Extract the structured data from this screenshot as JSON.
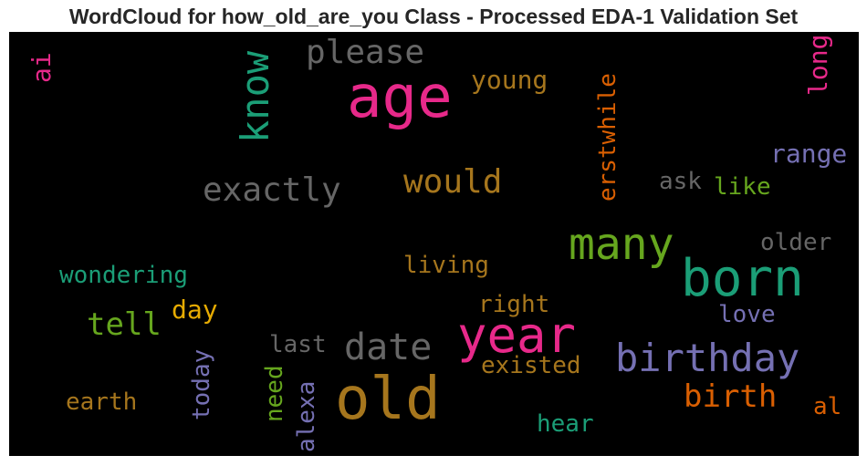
{
  "title": "WordCloud for how_old_are_you Class - Processed EDA-1 Validation Set",
  "colors": {
    "background": "#000000",
    "pink": "#e7298a",
    "teal": "#1b9e77",
    "orange": "#d95f02",
    "purple": "#7570b3",
    "green": "#66a61e",
    "gold": "#a6761d",
    "yellow": "#e6ab02",
    "gray": "#666666"
  },
  "words": [
    {
      "text": "age",
      "color": "#e7298a"
    },
    {
      "text": "old",
      "color": "#a6761d"
    },
    {
      "text": "year",
      "color": "#e7298a"
    },
    {
      "text": "born",
      "color": "#1b9e77"
    },
    {
      "text": "many",
      "color": "#66a61e"
    },
    {
      "text": "birthday",
      "color": "#7570b3"
    },
    {
      "text": "date",
      "color": "#666666"
    },
    {
      "text": "know",
      "color": "#1b9e77"
    },
    {
      "text": "exactly",
      "color": "#666666"
    },
    {
      "text": "would",
      "color": "#a6761d"
    },
    {
      "text": "please",
      "color": "#666666"
    },
    {
      "text": "birth",
      "color": "#d95f02"
    },
    {
      "text": "tell",
      "color": "#66a61e"
    },
    {
      "text": "young",
      "color": "#a6761d"
    },
    {
      "text": "erstwhile",
      "color": "#d95f02"
    },
    {
      "text": "range",
      "color": "#7570b3"
    },
    {
      "text": "ai",
      "color": "#e7298a"
    },
    {
      "text": "long",
      "color": "#e7298a"
    },
    {
      "text": "ask",
      "color": "#666666"
    },
    {
      "text": "like",
      "color": "#66a61e"
    },
    {
      "text": "older",
      "color": "#666666"
    },
    {
      "text": "living",
      "color": "#a6761d"
    },
    {
      "text": "wondering",
      "color": "#1b9e77"
    },
    {
      "text": "right",
      "color": "#a6761d"
    },
    {
      "text": "day",
      "color": "#e6ab02"
    },
    {
      "text": "love",
      "color": "#7570b3"
    },
    {
      "text": "last",
      "color": "#666666"
    },
    {
      "text": "existed",
      "color": "#a6761d"
    },
    {
      "text": "today",
      "color": "#7570b3"
    },
    {
      "text": "need",
      "color": "#66a61e"
    },
    {
      "text": "alexa",
      "color": "#7570b3"
    },
    {
      "text": "earth",
      "color": "#a6761d"
    },
    {
      "text": "hear",
      "color": "#1b9e77"
    },
    {
      "text": "al",
      "color": "#d95f02"
    }
  ]
}
